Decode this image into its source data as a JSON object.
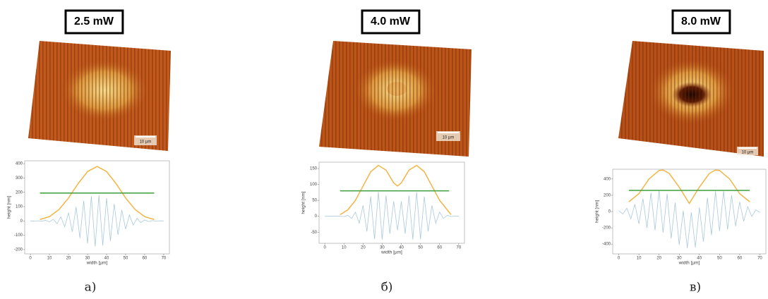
{
  "chart_data": [
    {
      "type": "line",
      "title": "2.5 mW",
      "caption": "а)",
      "scale_bar_label": "10 µm",
      "x_label": "width [µm]",
      "y_label": "height [nm]",
      "xlim": [
        -3,
        73
      ],
      "ylim": [
        -230,
        420
      ],
      "xticks": [
        0,
        10,
        20,
        30,
        40,
        50,
        60,
        70
      ],
      "yticks": [
        -200,
        -100,
        0,
        100,
        200,
        300,
        400
      ],
      "series": [
        {
          "color": "#a9c9dd",
          "x": [
            0,
            2,
            4,
            6,
            8,
            10,
            12,
            14,
            16,
            18,
            20,
            22,
            24,
            26,
            28,
            30,
            32,
            34,
            36,
            38,
            40,
            42,
            44,
            46,
            48,
            50,
            52,
            54,
            56,
            58,
            60,
            62,
            64,
            66,
            68,
            70
          ],
          "values": [
            0,
            -1,
            1,
            -2,
            4,
            -7,
            12,
            -19,
            29,
            -41,
            57,
            -76,
            97,
            -119,
            140,
            -158,
            172,
            -179,
            179,
            -172,
            158,
            -140,
            119,
            -97,
            76,
            -57,
            41,
            -29,
            19,
            -12,
            7,
            -4,
            2,
            -1,
            1,
            0
          ]
        },
        {
          "color": "#f2b443",
          "x": [
            5,
            10,
            15,
            20,
            25,
            30,
            35,
            40,
            45,
            50,
            55,
            60,
            65
          ],
          "values": [
            10,
            30,
            80,
            160,
            260,
            345,
            380,
            345,
            260,
            160,
            80,
            30,
            10
          ]
        },
        {
          "color": "#3c9e3e",
          "x": [
            5,
            65
          ],
          "values": [
            195,
            195
          ]
        }
      ]
    },
    {
      "type": "line",
      "title": "4.0 mW",
      "caption": "б)",
      "scale_bar_label": "10 µm",
      "x_label": "width [µm]",
      "y_label": "height [nm]",
      "xlim": [
        -3,
        73
      ],
      "ylim": [
        -85,
        170
      ],
      "xticks": [
        0,
        10,
        20,
        30,
        40,
        50,
        60,
        70
      ],
      "yticks": [
        -50,
        0,
        50,
        100,
        150
      ],
      "series": [
        {
          "color": "#a9c9dd",
          "x": [
            0,
            2,
            4,
            6,
            8,
            10,
            12,
            14,
            16,
            18,
            20,
            22,
            24,
            26,
            28,
            30,
            32,
            34,
            36,
            38,
            40,
            42,
            44,
            46,
            48,
            50,
            52,
            54,
            56,
            58,
            60,
            62,
            64,
            66,
            68,
            70
          ],
          "values": [
            0,
            0,
            0,
            0,
            1,
            -1,
            3,
            -7,
            13,
            -22,
            34,
            -48,
            62,
            -72,
            76,
            -73,
            65,
            -55,
            47,
            -44,
            47,
            -55,
            65,
            -73,
            76,
            -72,
            62,
            -48,
            34,
            -22,
            13,
            -7,
            3,
            -1,
            1,
            0
          ]
        },
        {
          "color": "#f2b443",
          "x": [
            8,
            12,
            16,
            20,
            24,
            28,
            32,
            36,
            38,
            40,
            44,
            48,
            52,
            56,
            60,
            64,
            66
          ],
          "values": [
            5,
            20,
            50,
            95,
            140,
            160,
            145,
            105,
            95,
            105,
            145,
            160,
            140,
            95,
            50,
            20,
            5
          ]
        },
        {
          "color": "#3c9e3e",
          "x": [
            8,
            65
          ],
          "values": [
            80,
            80
          ]
        }
      ]
    },
    {
      "type": "line",
      "title": "8.0 mW",
      "caption": "в)",
      "scale_bar_label": "10 µm",
      "x_label": "width [µm]",
      "y_label": "height [nm]",
      "xlim": [
        -3,
        73
      ],
      "ylim": [
        -520,
        520
      ],
      "xticks": [
        0,
        10,
        20,
        30,
        40,
        50,
        60,
        70
      ],
      "yticks": [
        -400,
        -200,
        0,
        200,
        400
      ],
      "series": [
        {
          "color": "#a9c9dd",
          "x": [
            0,
            2,
            4,
            6,
            8,
            10,
            12,
            14,
            16,
            18,
            20,
            22,
            24,
            26,
            28,
            30,
            32,
            34,
            36,
            38,
            40,
            42,
            44,
            46,
            48,
            50,
            52,
            54,
            56,
            58,
            60,
            62,
            64,
            66,
            68,
            70
          ],
          "values": [
            10,
            -30,
            40,
            -90,
            90,
            -150,
            160,
            -200,
            230,
            -230,
            260,
            -260,
            220,
            -330,
            110,
            -410,
            10,
            -450,
            -10,
            -440,
            50,
            -370,
            170,
            -290,
            250,
            -240,
            250,
            -220,
            200,
            -180,
            120,
            -120,
            60,
            -60,
            20,
            -10
          ]
        },
        {
          "color": "#f2b443",
          "x": [
            5,
            10,
            15,
            20,
            22,
            25,
            30,
            35,
            40,
            45,
            48,
            50,
            55,
            60,
            65
          ],
          "values": [
            120,
            220,
            400,
            505,
            510,
            470,
            300,
            100,
            300,
            470,
            510,
            505,
            400,
            220,
            120
          ]
        },
        {
          "color": "#3c9e3e",
          "x": [
            5,
            65
          ],
          "values": [
            260,
            260
          ]
        }
      ]
    }
  ]
}
